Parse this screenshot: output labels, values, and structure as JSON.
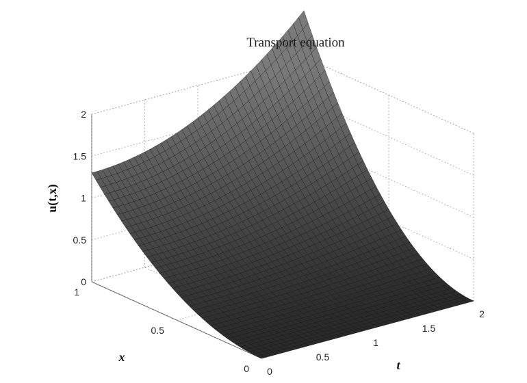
{
  "chart_data": {
    "type": "surface",
    "title": "Transport equation",
    "xlabel": "t",
    "ylabel": "x",
    "zlabel": "u(t,x)",
    "t_range": [
      0,
      2
    ],
    "x_range": [
      0,
      1
    ],
    "z_range": [
      0,
      2
    ],
    "t_ticks": [
      {
        "value": 0,
        "label": "0"
      },
      {
        "value": 0.5,
        "label": "0.5"
      },
      {
        "value": 1,
        "label": "1"
      },
      {
        "value": 1.5,
        "label": "1.5"
      },
      {
        "value": 2,
        "label": "2"
      }
    ],
    "x_ticks": [
      {
        "value": 0,
        "label": "0"
      },
      {
        "value": 0.5,
        "label": "0.5"
      },
      {
        "value": 1,
        "label": "1"
      }
    ],
    "z_ticks": [
      {
        "value": 0,
        "label": "0"
      },
      {
        "value": 0.5,
        "label": "0.5"
      },
      {
        "value": 1,
        "label": "1"
      },
      {
        "value": 1.5,
        "label": "1.5"
      },
      {
        "value": 2,
        "label": "2"
      }
    ],
    "corner_values": [
      {
        "t": 0,
        "x": 0,
        "u": 0
      },
      {
        "t": 0,
        "x": 1,
        "u": 1.3
      },
      {
        "t": 2,
        "x": 0,
        "u": 0
      },
      {
        "t": 2,
        "x": 1,
        "u": 2.55
      }
    ],
    "surface_color": "#2a2a2a",
    "grid": true
  }
}
